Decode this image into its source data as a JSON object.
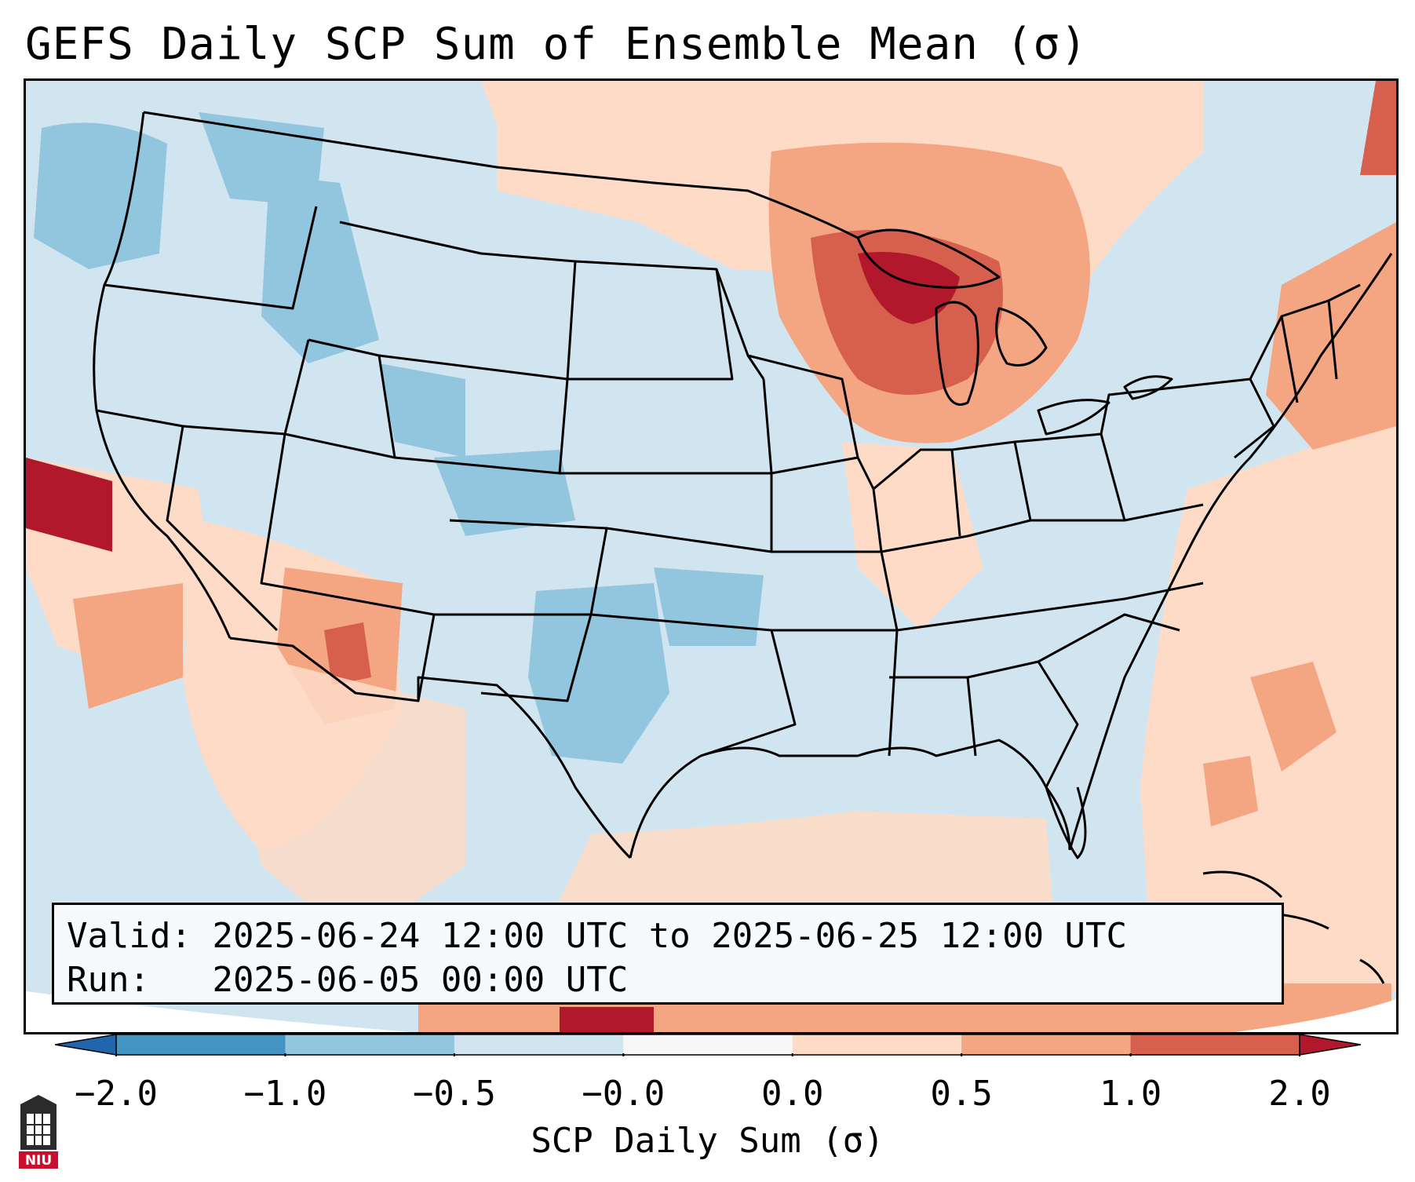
{
  "title": "GEFS Daily SCP Sum of Ensemble Mean (σ)",
  "info": {
    "valid_label": "Valid:",
    "valid_text": "2025-06-24 12:00 UTC to 2025-06-25 12:00 UTC",
    "run_label": "Run:",
    "run_text": "2025-06-05 00:00 UTC"
  },
  "colorbar": {
    "label": "SCP Daily Sum (σ)",
    "ticks": [
      "−2.0",
      "−1.0",
      "−0.5",
      "−0.0",
      "0.0",
      "0.5",
      "1.0",
      "2.0"
    ],
    "bins": [
      {
        "range": "< -2.0",
        "color": "#2166ac"
      },
      {
        "range": "-2.0 to -1.0",
        "color": "#4393c3"
      },
      {
        "range": "-1.0 to -0.5",
        "color": "#92c5de"
      },
      {
        "range": "-0.5 to -0.0",
        "color": "#d1e5f0"
      },
      {
        "range": "-0.0 to 0.0",
        "color": "#f7f7f7"
      },
      {
        "range": "0.0 to 0.5",
        "color": "#fddbc7"
      },
      {
        "range": "0.5 to 1.0",
        "color": "#f4a582"
      },
      {
        "range": "1.0 to 2.0",
        "color": "#d6604d"
      },
      {
        "range": "> 2.0",
        "color": "#b2182b"
      }
    ]
  },
  "map": {
    "region": "Continental United States",
    "background_color": "#d1e5f0",
    "features": [
      {
        "name": "Upper Midwest / Great Lakes",
        "category": "1.0 to 2.0"
      },
      {
        "name": "Northern Plains / Canada border",
        "category": "0.0 to 0.5"
      },
      {
        "name": "Northern Rockies",
        "category": "-1.0 to -0.5"
      },
      {
        "name": "West Texas",
        "category": "-1.0 to -0.5"
      },
      {
        "name": "Desert Southwest",
        "category": "0.5 to 1.0"
      },
      {
        "name": "Gulf of Mexico",
        "category": "0.0 to 0.5"
      },
      {
        "name": "Western Atlantic",
        "category": "0.0 to 0.5"
      },
      {
        "name": "Northeast",
        "category": "0.5 to 1.0"
      },
      {
        "name": "Eastern Pacific",
        "category": "> 2.0"
      }
    ]
  },
  "logo": {
    "text": "NIU",
    "color": "#c8102e"
  }
}
